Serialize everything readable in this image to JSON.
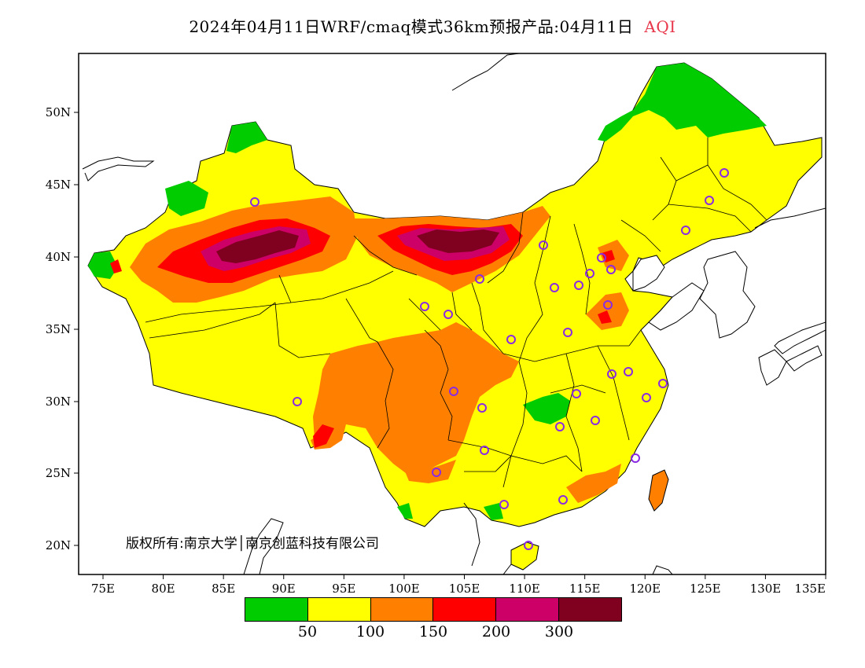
{
  "title": {
    "main": "2024年04月11日WRF/cmaq模式36km预报产品:04月11日",
    "variable": "AQI"
  },
  "copyright": "版权所有:南京大学│南京创蓝科技有限公司",
  "axes": {
    "lat_ticks": [
      "50N",
      "45N",
      "40N",
      "35N",
      "30N",
      "25N",
      "20N"
    ],
    "lon_ticks": [
      "75E",
      "80E",
      "85E",
      "90E",
      "95E",
      "100E",
      "105E",
      "110E",
      "115E",
      "120E",
      "125E",
      "130E",
      "135E"
    ]
  },
  "legend": {
    "colors": [
      "#00cc00",
      "#ffff00",
      "#ff8000",
      "#ff0000",
      "#cc0066",
      "#800020"
    ],
    "labels": [
      "50",
      "100",
      "150",
      "200",
      "300"
    ]
  },
  "colors": {
    "good": "#00cc00",
    "moderate": "#ffff00",
    "unhealthy_sensitive": "#ff8000",
    "unhealthy": "#ff0000",
    "very_unhealthy": "#cc0066",
    "hazardous": "#800020",
    "station_marker": "#8a2be2"
  }
}
